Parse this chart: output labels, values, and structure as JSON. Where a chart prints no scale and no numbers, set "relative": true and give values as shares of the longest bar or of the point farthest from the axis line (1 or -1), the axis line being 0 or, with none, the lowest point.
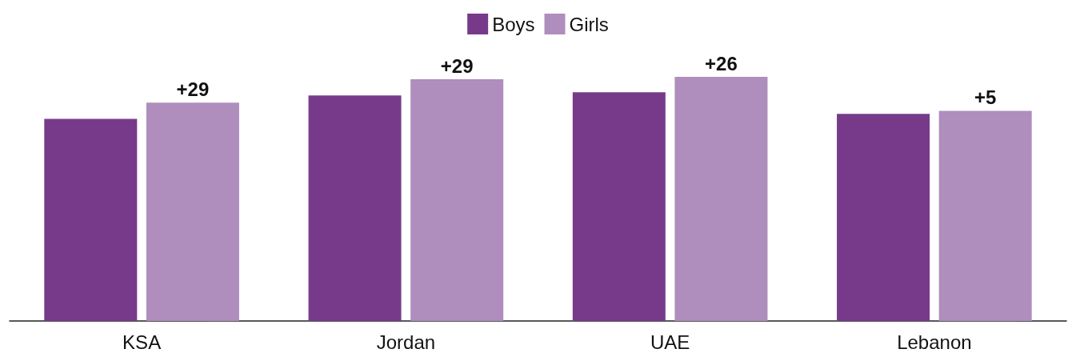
{
  "chart_data": {
    "type": "bar",
    "relative": true,
    "categories": [
      "KSA",
      "Jordan",
      "UAE",
      "Lebanon"
    ],
    "series": [
      {
        "name": "Boys",
        "color": "#773a8b",
        "values": [
          0.828,
          0.924,
          0.937,
          0.848
        ]
      },
      {
        "name": "Girls",
        "color": "#af8dbd",
        "values": [
          0.894,
          0.99,
          1,
          0.861
        ]
      }
    ],
    "annotations": [
      "+29",
      "+29",
      "+26",
      "+5"
    ],
    "legend": "top"
  }
}
